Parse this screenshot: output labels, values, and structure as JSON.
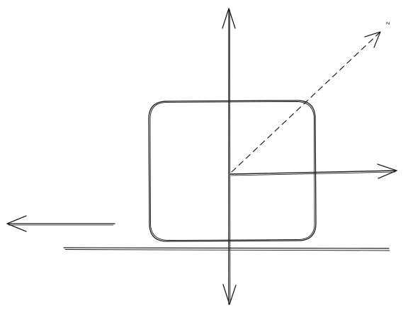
{
  "diagram": {
    "axis_labels": {
      "z": "z"
    },
    "ink_color": "#1e1e1e",
    "background_color": "#ffffff",
    "elements": [
      "vertical-axis",
      "horizontal-axis-positive-x",
      "z-axis-dashed",
      "rounded-square",
      "ground-line",
      "left-arrow"
    ]
  }
}
